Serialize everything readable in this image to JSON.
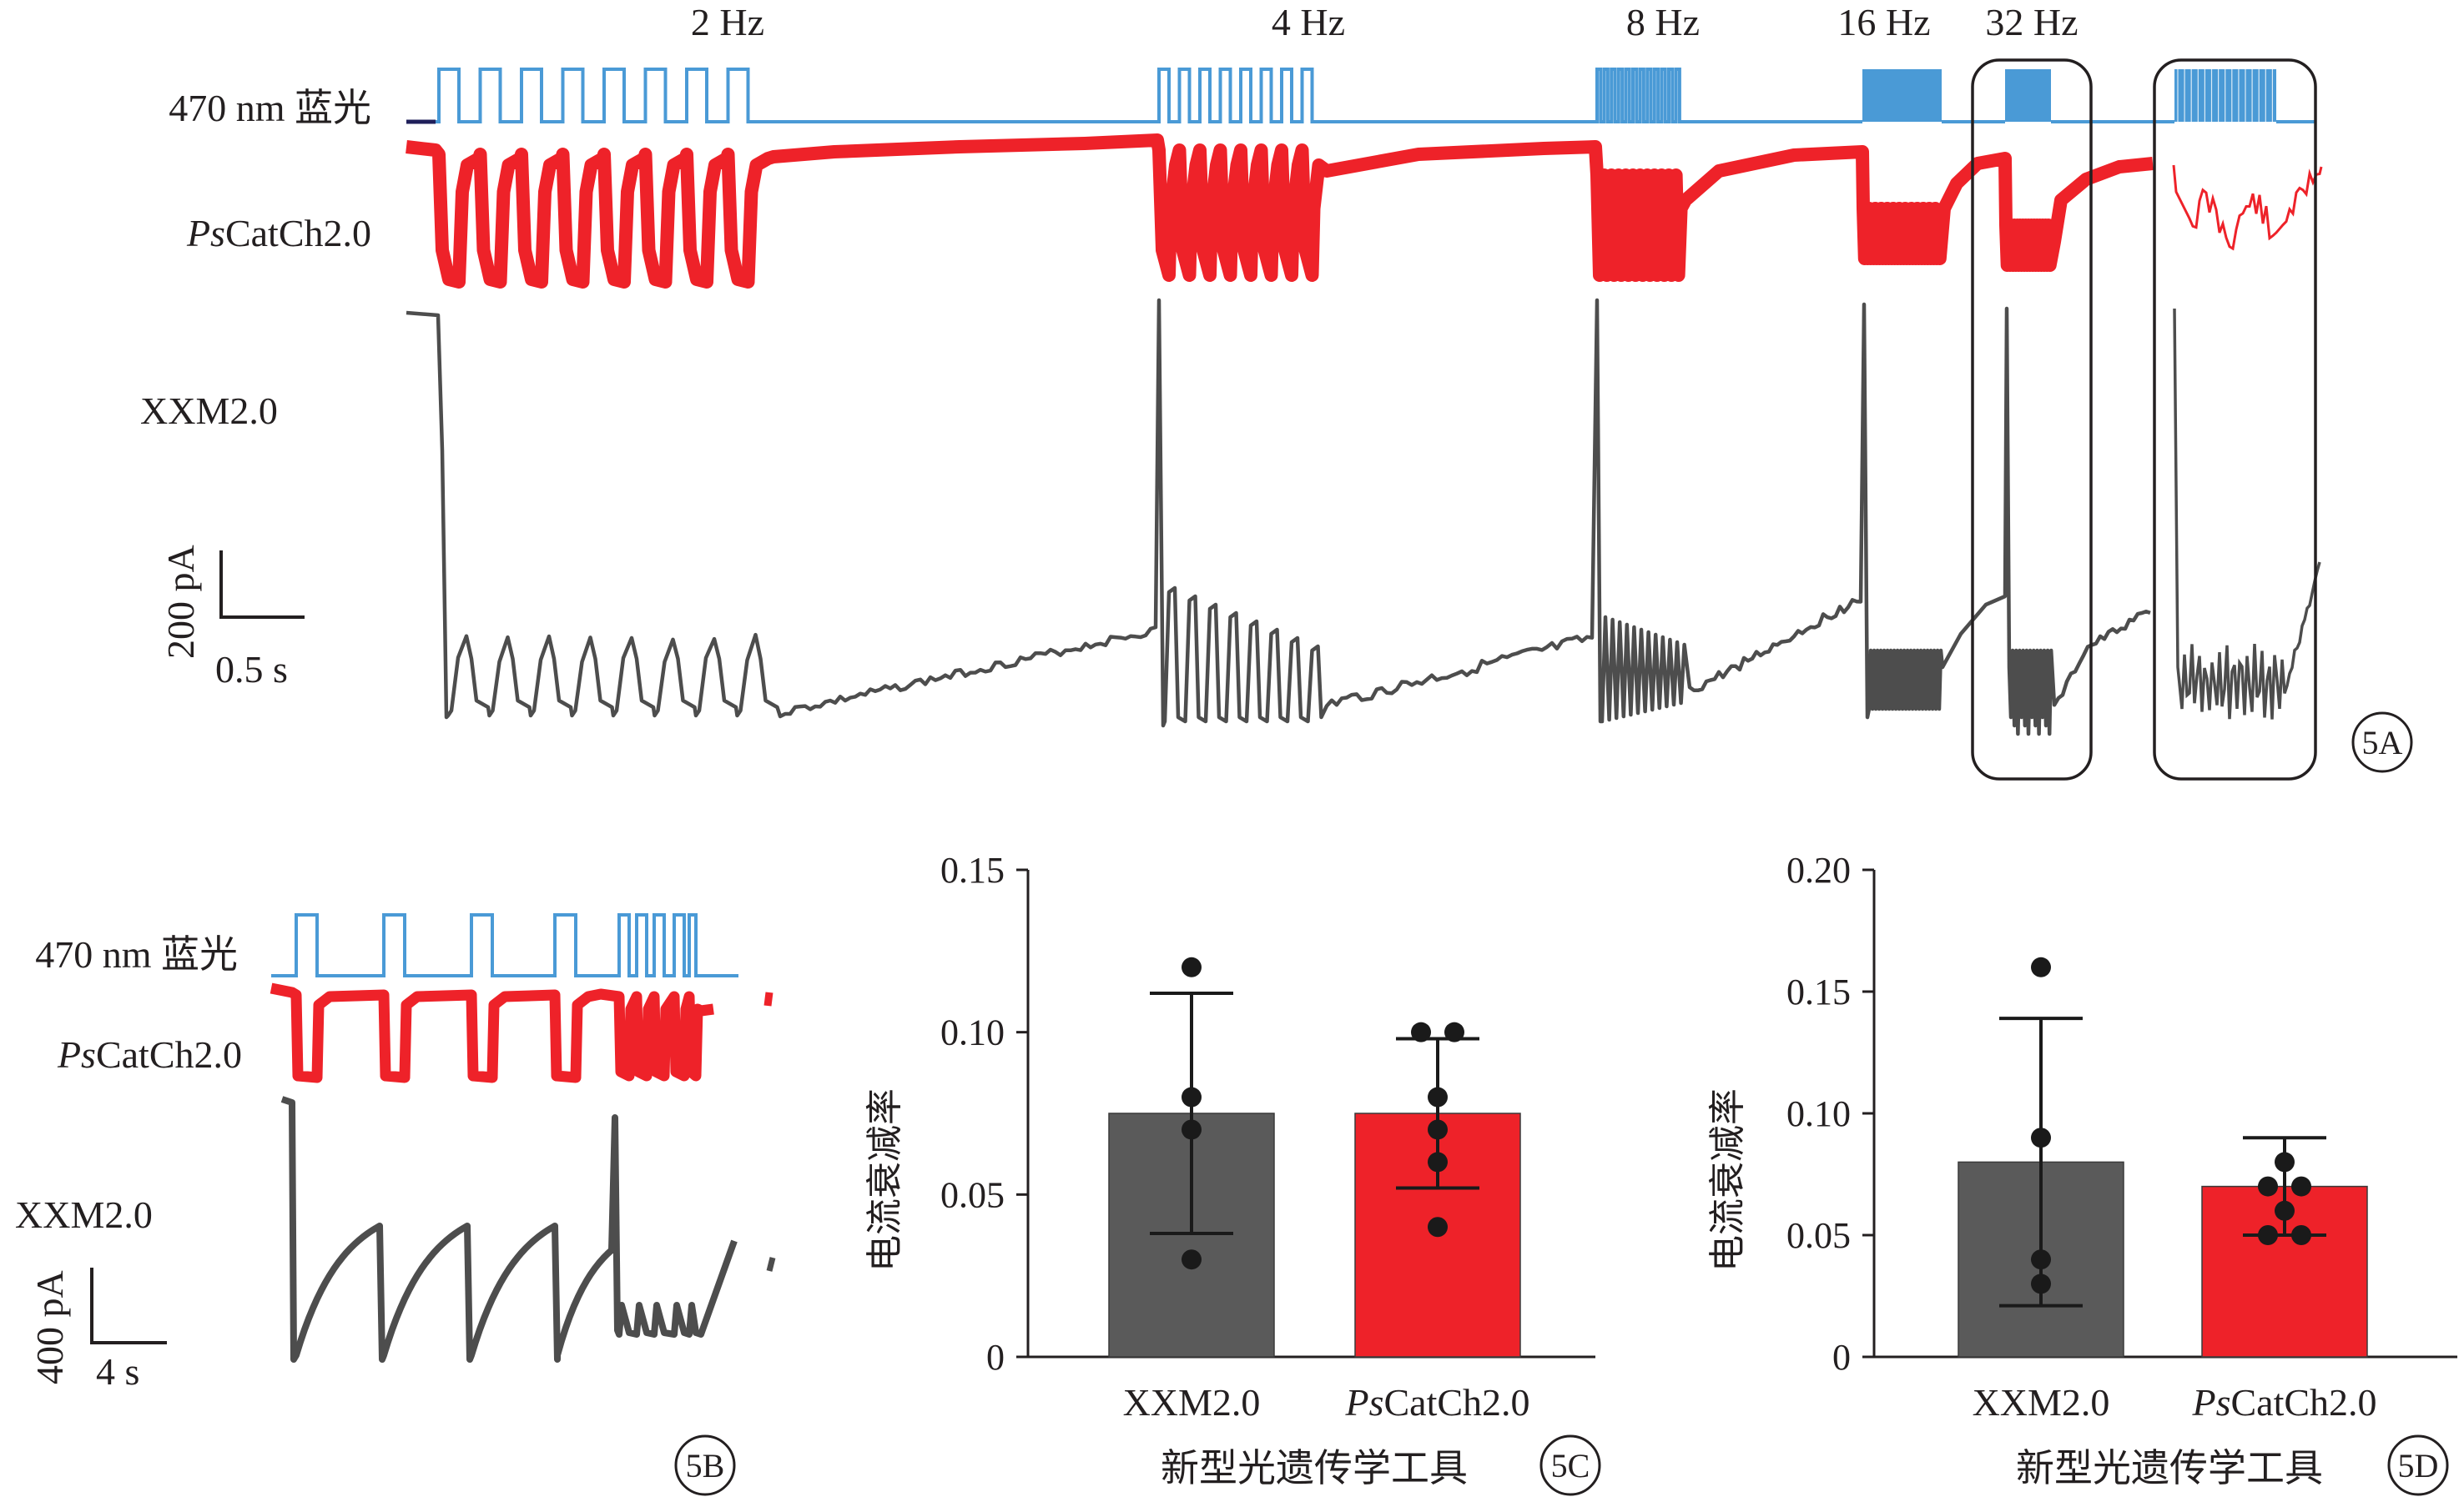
{
  "panel_5A": {
    "frequency_labels": [
      "2 Hz",
      "4 Hz",
      "8 Hz",
      "16 Hz",
      "32 Hz"
    ],
    "light_label": "470 nm 蓝光",
    "trace_label_ps_italic": "Ps",
    "trace_label_ps_rest": "CatCh2.0",
    "trace_label_xxm": "XXM2.0",
    "scale_y": "200 pA",
    "scale_x": "0.5 s",
    "panel_label": "5A"
  },
  "panel_5B": {
    "light_label": "470 nm 蓝光",
    "trace_label_ps_italic": "Ps",
    "trace_label_ps_rest": "CatCh2.0",
    "trace_label_xxm": "XXM2.0",
    "scale_y": "400 pA",
    "scale_x": "4 s",
    "panel_label": "5B"
  },
  "panel_5C": {
    "panel_label": "5C"
  },
  "panel_5D": {
    "panel_label": "5D"
  },
  "colors": {
    "light_trace": "#4a9ad6",
    "ps_trace": "#ee2229",
    "xxm_trace": "#4d4d4d",
    "xxm_bar": "#5a5a5a",
    "ps_bar": "#ee2229",
    "dot": "#1a1a1a"
  },
  "chart_data": [
    {
      "id": "5C",
      "type": "bar",
      "categories": [
        "XXM2.0",
        "PsCatCh2.0"
      ],
      "category_italic_prefix": [
        "",
        "Ps"
      ],
      "category_rest": [
        "XXM2.0",
        "CatCh2.0"
      ],
      "values": [
        0.075,
        0.075
      ],
      "error": [
        [
          0.038,
          0.112
        ],
        [
          0.052,
          0.098
        ]
      ],
      "points": [
        [
          0.12,
          0.08,
          0.07,
          0.03
        ],
        [
          0.1,
          0.1,
          0.08,
          0.07,
          0.06,
          0.04
        ]
      ],
      "xlabel": "新型光遗传学工具",
      "ylabel": "电流衰减率",
      "ylim": [
        0,
        0.15
      ],
      "yticks": [
        0,
        0.05,
        0.1,
        0.15
      ],
      "ytick_labels": [
        "0",
        "0.05",
        "0.10",
        "0.15"
      ]
    },
    {
      "id": "5D",
      "type": "bar",
      "categories": [
        "XXM2.0",
        "PsCatCh2.0"
      ],
      "category_italic_prefix": [
        "",
        "Ps"
      ],
      "category_rest": [
        "XXM2.0",
        "CatCh2.0"
      ],
      "values": [
        0.08,
        0.07
      ],
      "error": [
        [
          0.021,
          0.139
        ],
        [
          0.05,
          0.09
        ]
      ],
      "points": [
        [
          0.16,
          0.09,
          0.04,
          0.03
        ],
        [
          0.08,
          0.07,
          0.07,
          0.06,
          0.05,
          0.05
        ]
      ],
      "xlabel": "新型光遗传学工具",
      "ylabel": "电流衰减率",
      "ylim": [
        0,
        0.2
      ],
      "yticks": [
        0,
        0.05,
        0.1,
        0.15,
        0.2
      ],
      "ytick_labels": [
        "0",
        "0.05",
        "0.10",
        "0.15",
        "0.20"
      ]
    }
  ]
}
